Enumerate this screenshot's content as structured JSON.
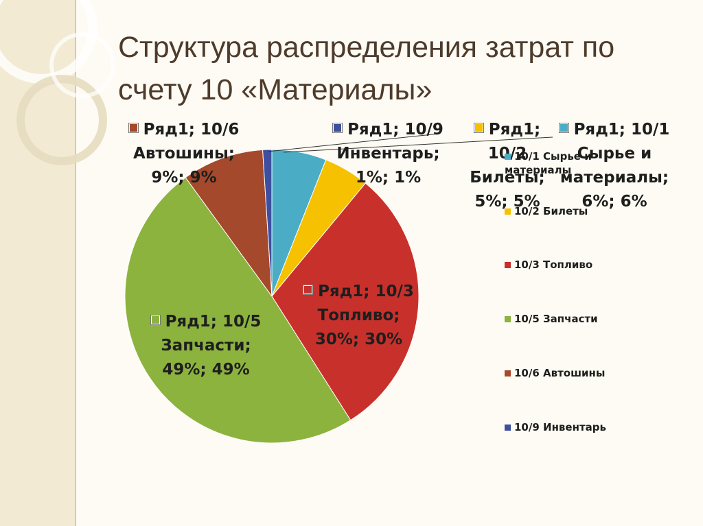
{
  "chart_data": {
    "type": "pie",
    "title": "Структура распределения затрат по счету 10 «Материалы»",
    "categories": [
      "10/1 Сырье и материалы",
      "10/2 Билеты",
      "10/3 Топливо",
      "10/5 Запчасти",
      "10/6 Автошины",
      "10/9 Инвентарь"
    ],
    "values": [
      6,
      5,
      30,
      49,
      9,
      1
    ],
    "value_labels": [
      "Ряд1; 10/1 Сырье и материалы; 6%; 6%",
      "Ряд1; 10/2 Билеты; 5%; 5%",
      "Ряд1; 10/3 Топливо; 30%; 30%",
      "Ряд1; 10/5 Запчасти; 49%; 49%",
      "Ряд1; 10/6 Автошины; 9%; 9%",
      "Ряд1; 10/9 Инвентарь; 1%; 1%"
    ],
    "colors": [
      "#4bacc6",
      "#f5c100",
      "#c8312b",
      "#8cb33e",
      "#a4492b",
      "#3e4f9f"
    ],
    "legend": "right"
  }
}
